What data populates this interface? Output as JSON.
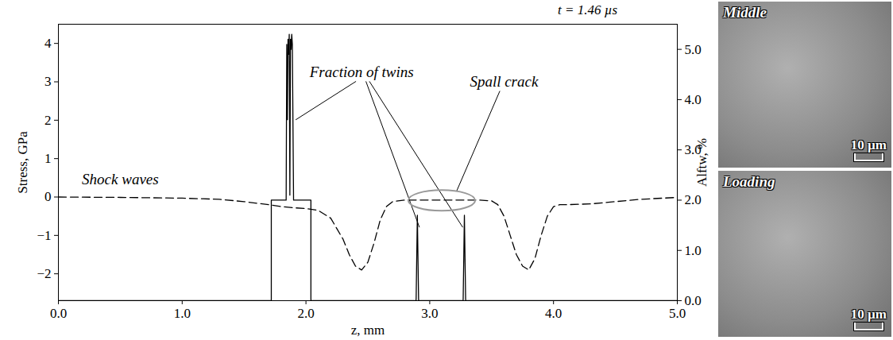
{
  "chart_data": {
    "type": "line",
    "title": "t = 1.46 µs",
    "xlabel": "z, mm",
    "ylabel": "Stress, GPa",
    "y2label": "Alftw, %",
    "xlim": [
      0,
      5
    ],
    "xticks": [
      0,
      1,
      2,
      3,
      4,
      5
    ],
    "ylim": [
      -2.7,
      4.5
    ],
    "yticks": [
      -2,
      -1,
      0,
      1,
      2,
      3,
      4
    ],
    "y2lim": [
      0,
      5.5
    ],
    "y2ticks": [
      0,
      1,
      2,
      3,
      4,
      5
    ],
    "series": [
      {
        "color": "#000000",
        "line_style": "dashed",
        "x": [
          0,
          0.5,
          1.0,
          1.3,
          1.5,
          1.7,
          1.8,
          1.9,
          2.0,
          2.1,
          2.2,
          2.3,
          2.35,
          2.4,
          2.45,
          2.5,
          2.55,
          2.6,
          2.65,
          2.7,
          2.8,
          3.0,
          3.2,
          3.4,
          3.5,
          3.55,
          3.6,
          3.65,
          3.7,
          3.75,
          3.8,
          3.85,
          3.9,
          3.95,
          4.0,
          4.05,
          4.1,
          4.3,
          4.5,
          4.7,
          5.0
        ],
        "values": [
          0,
          -0.01,
          -0.03,
          -0.06,
          -0.12,
          -0.2,
          -0.25,
          -0.28,
          -0.3,
          -0.35,
          -0.55,
          -1.1,
          -1.5,
          -1.8,
          -1.9,
          -1.7,
          -1.2,
          -0.6,
          -0.25,
          -0.12,
          -0.08,
          -0.08,
          -0.08,
          -0.08,
          -0.1,
          -0.2,
          -0.5,
          -1.0,
          -1.5,
          -1.8,
          -1.9,
          -1.6,
          -1.0,
          -0.5,
          -0.25,
          -0.2,
          -0.2,
          -0.18,
          -0.12,
          -0.06,
          -0.01
        ]
      },
      {
        "color": "#000000",
        "line_style": "solid",
        "axis": "y2",
        "x": [
          0,
          1.72,
          1.72,
          1.84,
          1.845,
          1.85,
          1.855,
          1.86,
          1.865,
          1.87,
          1.875,
          1.88,
          1.885,
          1.89,
          1.9,
          2.04,
          2.04,
          2.89,
          2.9,
          2.91,
          3.27,
          3.28,
          3.29,
          5
        ],
        "values": [
          0,
          0,
          2,
          2,
          5.1,
          3.6,
          5.2,
          4.9,
          5.3,
          2.1,
          5.2,
          5.0,
          5.3,
          5.1,
          2,
          2,
          0,
          0,
          1.7,
          0,
          0,
          1.7,
          0,
          0
        ]
      }
    ],
    "annotations": [
      {
        "text": "Shock waves",
        "x": 0.5,
        "y": 0.45
      },
      {
        "text": "Fraction of twins",
        "x": 2.45,
        "y": 3.25,
        "points": [
          [
            1.92,
            2.0
          ],
          [
            2.92,
            -0.8
          ],
          [
            3.27,
            -0.8
          ]
        ]
      },
      {
        "text": "Spall crack",
        "x": 3.6,
        "y": 3.0,
        "points": [
          [
            3.22,
            0.14
          ]
        ],
        "circle": {
          "x": 3.1,
          "y": -0.1
        }
      }
    ]
  },
  "images": [
    {
      "label": "Middle",
      "scale_bar": "10 µm"
    },
    {
      "label": "Loading",
      "scale_bar": "10 µm"
    }
  ]
}
